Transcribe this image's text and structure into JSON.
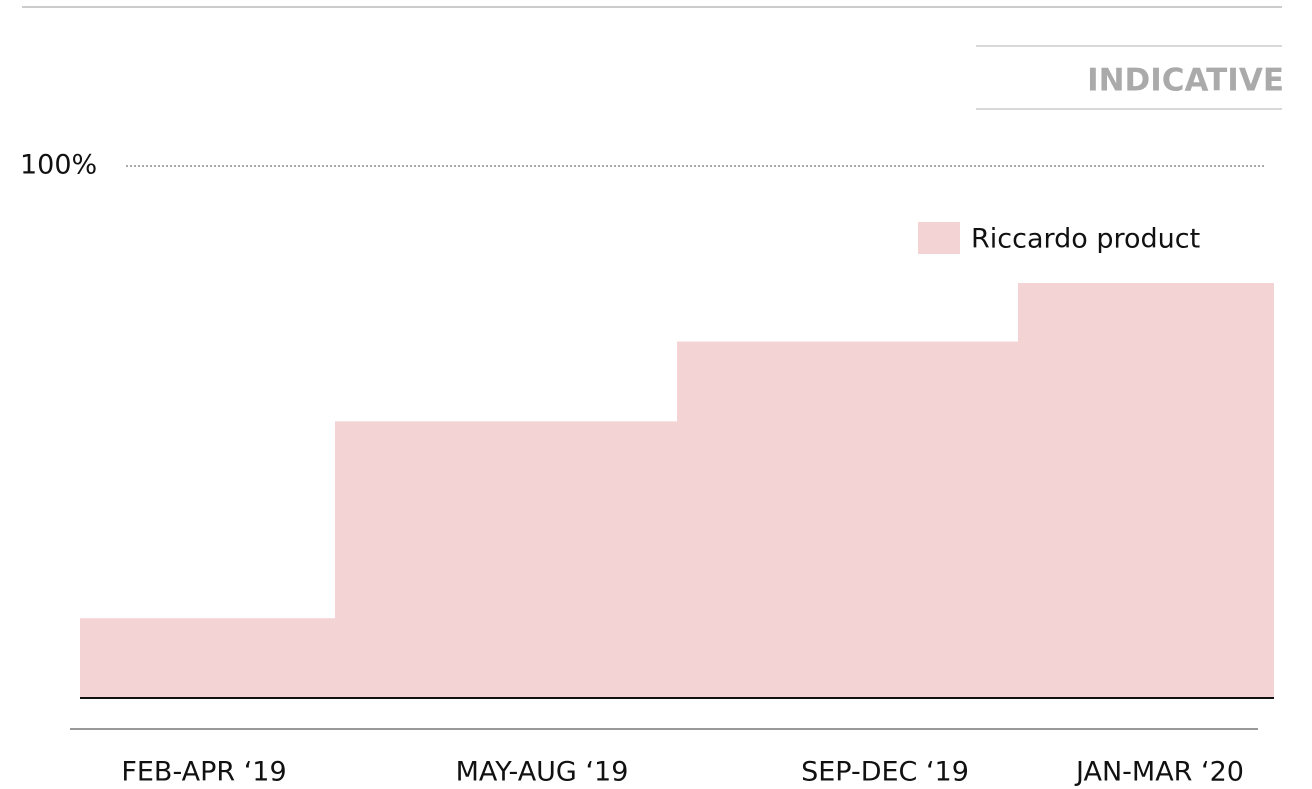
{
  "chart_data": {
    "type": "bar",
    "annotation": "INDICATIVE",
    "categories": [
      "FEB-APR ‘19",
      "MAY-AUG ‘19",
      "SEP-DEC ‘19",
      "JAN-MAR ‘20"
    ],
    "series": [
      {
        "name": "Riccardo product",
        "color": "#f4d3d5",
        "values": [
          15,
          52,
          67,
          78
        ]
      }
    ],
    "ylim": [
      0,
      100
    ],
    "yticks": [
      {
        "value": 100,
        "label": "100%"
      }
    ],
    "grid": true,
    "legend": "top-right"
  }
}
